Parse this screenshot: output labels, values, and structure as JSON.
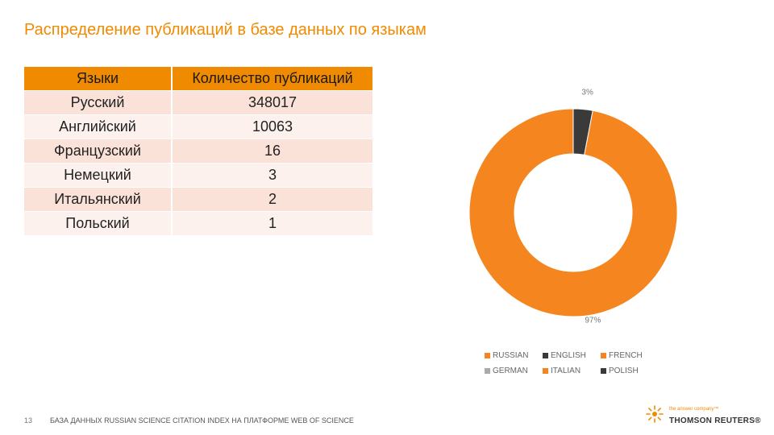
{
  "title": "Распределение публикаций в базе данных по языкам",
  "table": {
    "headers": [
      "Языки",
      "Количество публикаций"
    ],
    "rows": [
      [
        "Русский",
        "348017"
      ],
      [
        "Английский",
        "10063"
      ],
      [
        "Французский",
        "16"
      ],
      [
        "Немецкий",
        "3"
      ],
      [
        "Итальянский",
        "2"
      ],
      [
        "Польский",
        "1"
      ]
    ]
  },
  "chart_data": {
    "type": "pie",
    "title": "",
    "donut": true,
    "slices": [
      {
        "name": "RUSSIAN",
        "value": 97,
        "label": "97%",
        "color": "#f5861f"
      },
      {
        "name": "ENGLISH",
        "value": 3,
        "label": "3%",
        "color": "#3a3a3a"
      },
      {
        "name": "FRENCH",
        "value": 0,
        "label": "",
        "color": "#f5861f"
      },
      {
        "name": "GERMAN",
        "value": 0,
        "label": "",
        "color": "#aaaaaa"
      },
      {
        "name": "ITALIAN",
        "value": 0,
        "label": "",
        "color": "#f5861f"
      },
      {
        "name": "POLISH",
        "value": 0,
        "label": "",
        "color": "#3a3a3a"
      }
    ],
    "legend_position": "bottom"
  },
  "footer": {
    "page_number": "13",
    "text": "БАЗА ДАННЫХ RUSSIAN SCIENCE CITATION INDEX НА ПЛАТФОРМЕ WEB OF SCIENCE"
  },
  "logo": {
    "tagline": "the answer company™",
    "name": "THOMSON REUTERS®",
    "color": "#f08a00"
  }
}
